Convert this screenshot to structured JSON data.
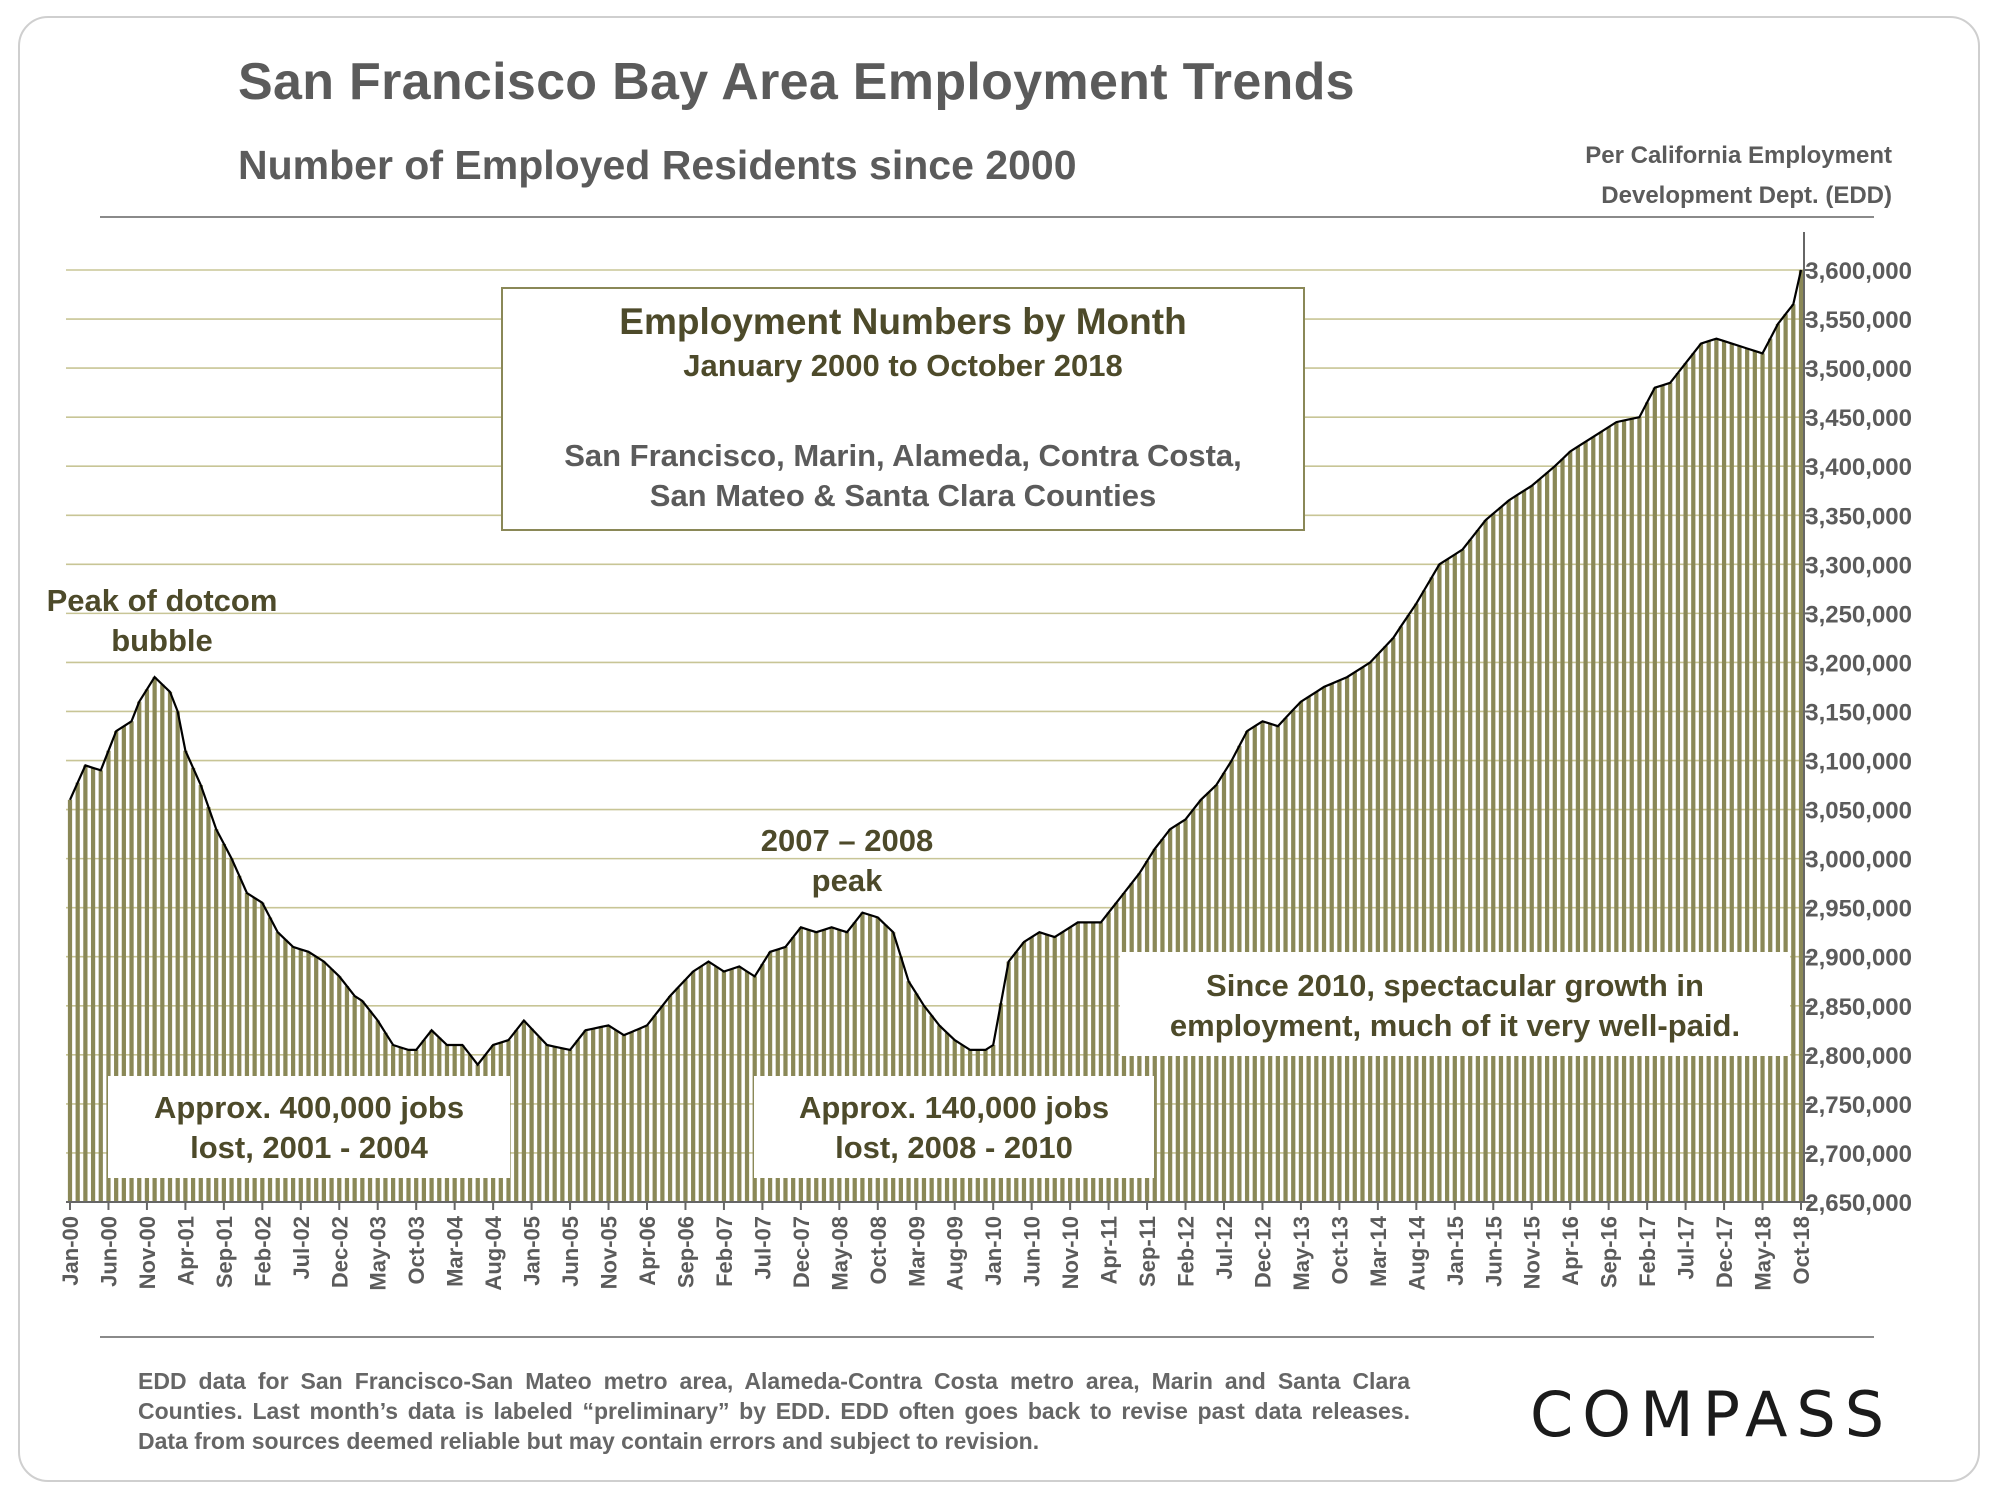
{
  "header": {
    "title": "San Francisco Bay Area Employment Trends",
    "subtitle": "Number of Employed  Residents since 2000",
    "source_line1": "Per California Employment",
    "source_line2": "Development Dept. (EDD)"
  },
  "footer": {
    "footnote": "EDD data for San Francisco-San Mateo metro area, Alameda-Contra Costa metro area, Marin and Santa Clara Counties. Last month’s data is labeled “preliminary” by EDD. EDD often goes back to revise past data releases. Data from sources deemed reliable but may contain errors and subject to revision.",
    "logo": "COMPASS"
  },
  "colors": {
    "bar": "#8a8857",
    "line": "#000000",
    "grid": "#c8c596",
    "annotation_text": "#4d4a2a",
    "text_gray": "#5b5b5b"
  },
  "chart_data": {
    "type": "bar",
    "overlay": "line",
    "ylim": [
      2650000,
      3600000
    ],
    "y_ticks": [
      "2,650,000",
      "2,700,000",
      "2,750,000",
      "2,800,000",
      "2,850,000",
      "2,900,000",
      "2,950,000",
      "3,000,000",
      "3,050,000",
      "3,100,000",
      "3,150,000",
      "3,200,000",
      "3,250,000",
      "3,300,000",
      "3,350,000",
      "3,400,000",
      "3,450,000",
      "3,500,000",
      "3,550,000",
      "3,600,000"
    ],
    "y_tick_values": [
      2650000,
      2700000,
      2750000,
      2800000,
      2850000,
      2900000,
      2950000,
      3000000,
      3050000,
      3100000,
      3150000,
      3200000,
      3250000,
      3300000,
      3350000,
      3400000,
      3450000,
      3500000,
      3550000,
      3600000
    ],
    "x_ticks": [
      "Jan-00",
      "Jun-00",
      "Nov-00",
      "Apr-01",
      "Sep-01",
      "Feb-02",
      "Jul-02",
      "Dec-02",
      "May-03",
      "Oct-03",
      "Mar-04",
      "Aug-04",
      "Jan-05",
      "Jun-05",
      "Nov-05",
      "Apr-06",
      "Sep-06",
      "Feb-07",
      "Jul-07",
      "Dec-07",
      "May-08",
      "Oct-08",
      "Mar-09",
      "Aug-09",
      "Jan-10",
      "Jun-10",
      "Nov-10",
      "Apr-11",
      "Sep-11",
      "Feb-12",
      "Jul-12",
      "Dec-12",
      "May-13",
      "Oct-13",
      "Mar-14",
      "Aug-14",
      "Jan-15",
      "Jun-15",
      "Nov-15",
      "Apr-16",
      "Sep-16",
      "Feb-17",
      "Jul-17",
      "Dec-17",
      "May-18",
      "Oct-18"
    ],
    "x_start": "2000-01",
    "x_end": "2018-10",
    "grid": true,
    "y_axis_position": "right",
    "anchors": [
      [
        "2000-01",
        3060000
      ],
      [
        "2000-03",
        3095000
      ],
      [
        "2000-05",
        3090000
      ],
      [
        "2000-07",
        3130000
      ],
      [
        "2000-09",
        3140000
      ],
      [
        "2000-10",
        3160000
      ],
      [
        "2000-12",
        3185000
      ],
      [
        "2001-02",
        3170000
      ],
      [
        "2001-03",
        3150000
      ],
      [
        "2001-04",
        3110000
      ],
      [
        "2001-06",
        3075000
      ],
      [
        "2001-08",
        3030000
      ],
      [
        "2001-10",
        3000000
      ],
      [
        "2001-12",
        2965000
      ],
      [
        "2002-02",
        2955000
      ],
      [
        "2002-04",
        2925000
      ],
      [
        "2002-06",
        2910000
      ],
      [
        "2002-08",
        2905000
      ],
      [
        "2002-10",
        2895000
      ],
      [
        "2002-12",
        2880000
      ],
      [
        "2003-02",
        2860000
      ],
      [
        "2003-03",
        2855000
      ],
      [
        "2003-05",
        2835000
      ],
      [
        "2003-07",
        2810000
      ],
      [
        "2003-09",
        2805000
      ],
      [
        "2003-10",
        2805000
      ],
      [
        "2003-12",
        2825000
      ],
      [
        "2004-02",
        2810000
      ],
      [
        "2004-04",
        2810000
      ],
      [
        "2004-06",
        2790000
      ],
      [
        "2004-08",
        2810000
      ],
      [
        "2004-10",
        2815000
      ],
      [
        "2004-12",
        2835000
      ],
      [
        "2005-03",
        2810000
      ],
      [
        "2005-06",
        2805000
      ],
      [
        "2005-08",
        2825000
      ],
      [
        "2005-11",
        2830000
      ],
      [
        "2006-01",
        2820000
      ],
      [
        "2006-04",
        2830000
      ],
      [
        "2006-07",
        2860000
      ],
      [
        "2006-10",
        2885000
      ],
      [
        "2006-12",
        2895000
      ],
      [
        "2007-02",
        2885000
      ],
      [
        "2007-04",
        2890000
      ],
      [
        "2007-06",
        2880000
      ],
      [
        "2007-08",
        2905000
      ],
      [
        "2007-10",
        2910000
      ],
      [
        "2007-12",
        2930000
      ],
      [
        "2008-02",
        2925000
      ],
      [
        "2008-04",
        2930000
      ],
      [
        "2008-06",
        2925000
      ],
      [
        "2008-08",
        2945000
      ],
      [
        "2008-10",
        2940000
      ],
      [
        "2008-12",
        2925000
      ],
      [
        "2009-02",
        2875000
      ],
      [
        "2009-04",
        2850000
      ],
      [
        "2009-06",
        2830000
      ],
      [
        "2009-08",
        2815000
      ],
      [
        "2009-10",
        2805000
      ],
      [
        "2009-12",
        2805000
      ],
      [
        "2010-01",
        2810000
      ],
      [
        "2010-03",
        2895000
      ],
      [
        "2010-05",
        2915000
      ],
      [
        "2010-07",
        2925000
      ],
      [
        "2010-09",
        2920000
      ],
      [
        "2010-12",
        2935000
      ],
      [
        "2011-03",
        2935000
      ],
      [
        "2011-06",
        2965000
      ],
      [
        "2011-08",
        2985000
      ],
      [
        "2011-10",
        3010000
      ],
      [
        "2011-12",
        3030000
      ],
      [
        "2012-02",
        3040000
      ],
      [
        "2012-04",
        3060000
      ],
      [
        "2012-06",
        3075000
      ],
      [
        "2012-08",
        3100000
      ],
      [
        "2012-10",
        3130000
      ],
      [
        "2012-12",
        3140000
      ],
      [
        "2013-02",
        3135000
      ],
      [
        "2013-05",
        3160000
      ],
      [
        "2013-08",
        3175000
      ],
      [
        "2013-11",
        3185000
      ],
      [
        "2014-02",
        3200000
      ],
      [
        "2014-05",
        3225000
      ],
      [
        "2014-08",
        3260000
      ],
      [
        "2014-11",
        3300000
      ],
      [
        "2015-02",
        3315000
      ],
      [
        "2015-05",
        3345000
      ],
      [
        "2015-08",
        3365000
      ],
      [
        "2015-11",
        3380000
      ],
      [
        "2016-02",
        3400000
      ],
      [
        "2016-04",
        3415000
      ],
      [
        "2016-07",
        3430000
      ],
      [
        "2016-10",
        3445000
      ],
      [
        "2017-01",
        3450000
      ],
      [
        "2017-03",
        3480000
      ],
      [
        "2017-05",
        3485000
      ],
      [
        "2017-07",
        3505000
      ],
      [
        "2017-09",
        3525000
      ],
      [
        "2017-11",
        3530000
      ],
      [
        "2018-01",
        3525000
      ],
      [
        "2018-03",
        3520000
      ],
      [
        "2018-05",
        3515000
      ],
      [
        "2018-07",
        3545000
      ],
      [
        "2018-09",
        3565000
      ],
      [
        "2018-10",
        3600000
      ]
    ]
  },
  "annotations": {
    "inset_title": "Employment Numbers by Month",
    "inset_subtitle": "January 2000 to October 2018",
    "inset_counties_line1": "San Francisco, Marin, Alameda, Contra Costa,",
    "inset_counties_line2": "San Mateo & Santa Clara Counties",
    "dotcom_line1": "Peak of dotcom",
    "dotcom_line2": "bubble",
    "peak0708_line1": "2007 – 2008",
    "peak0708_line2": "peak",
    "growth_line1": "Since 2010, spectacular growth in",
    "growth_line2": "employment, much of it very well-paid.",
    "lost0104_line1": "Approx. 400,000 jobs",
    "lost0104_line2": "lost, 2001 - 2004",
    "lost0810_line1": "Approx. 140,000 jobs",
    "lost0810_line2": "lost, 2008 - 2010"
  }
}
